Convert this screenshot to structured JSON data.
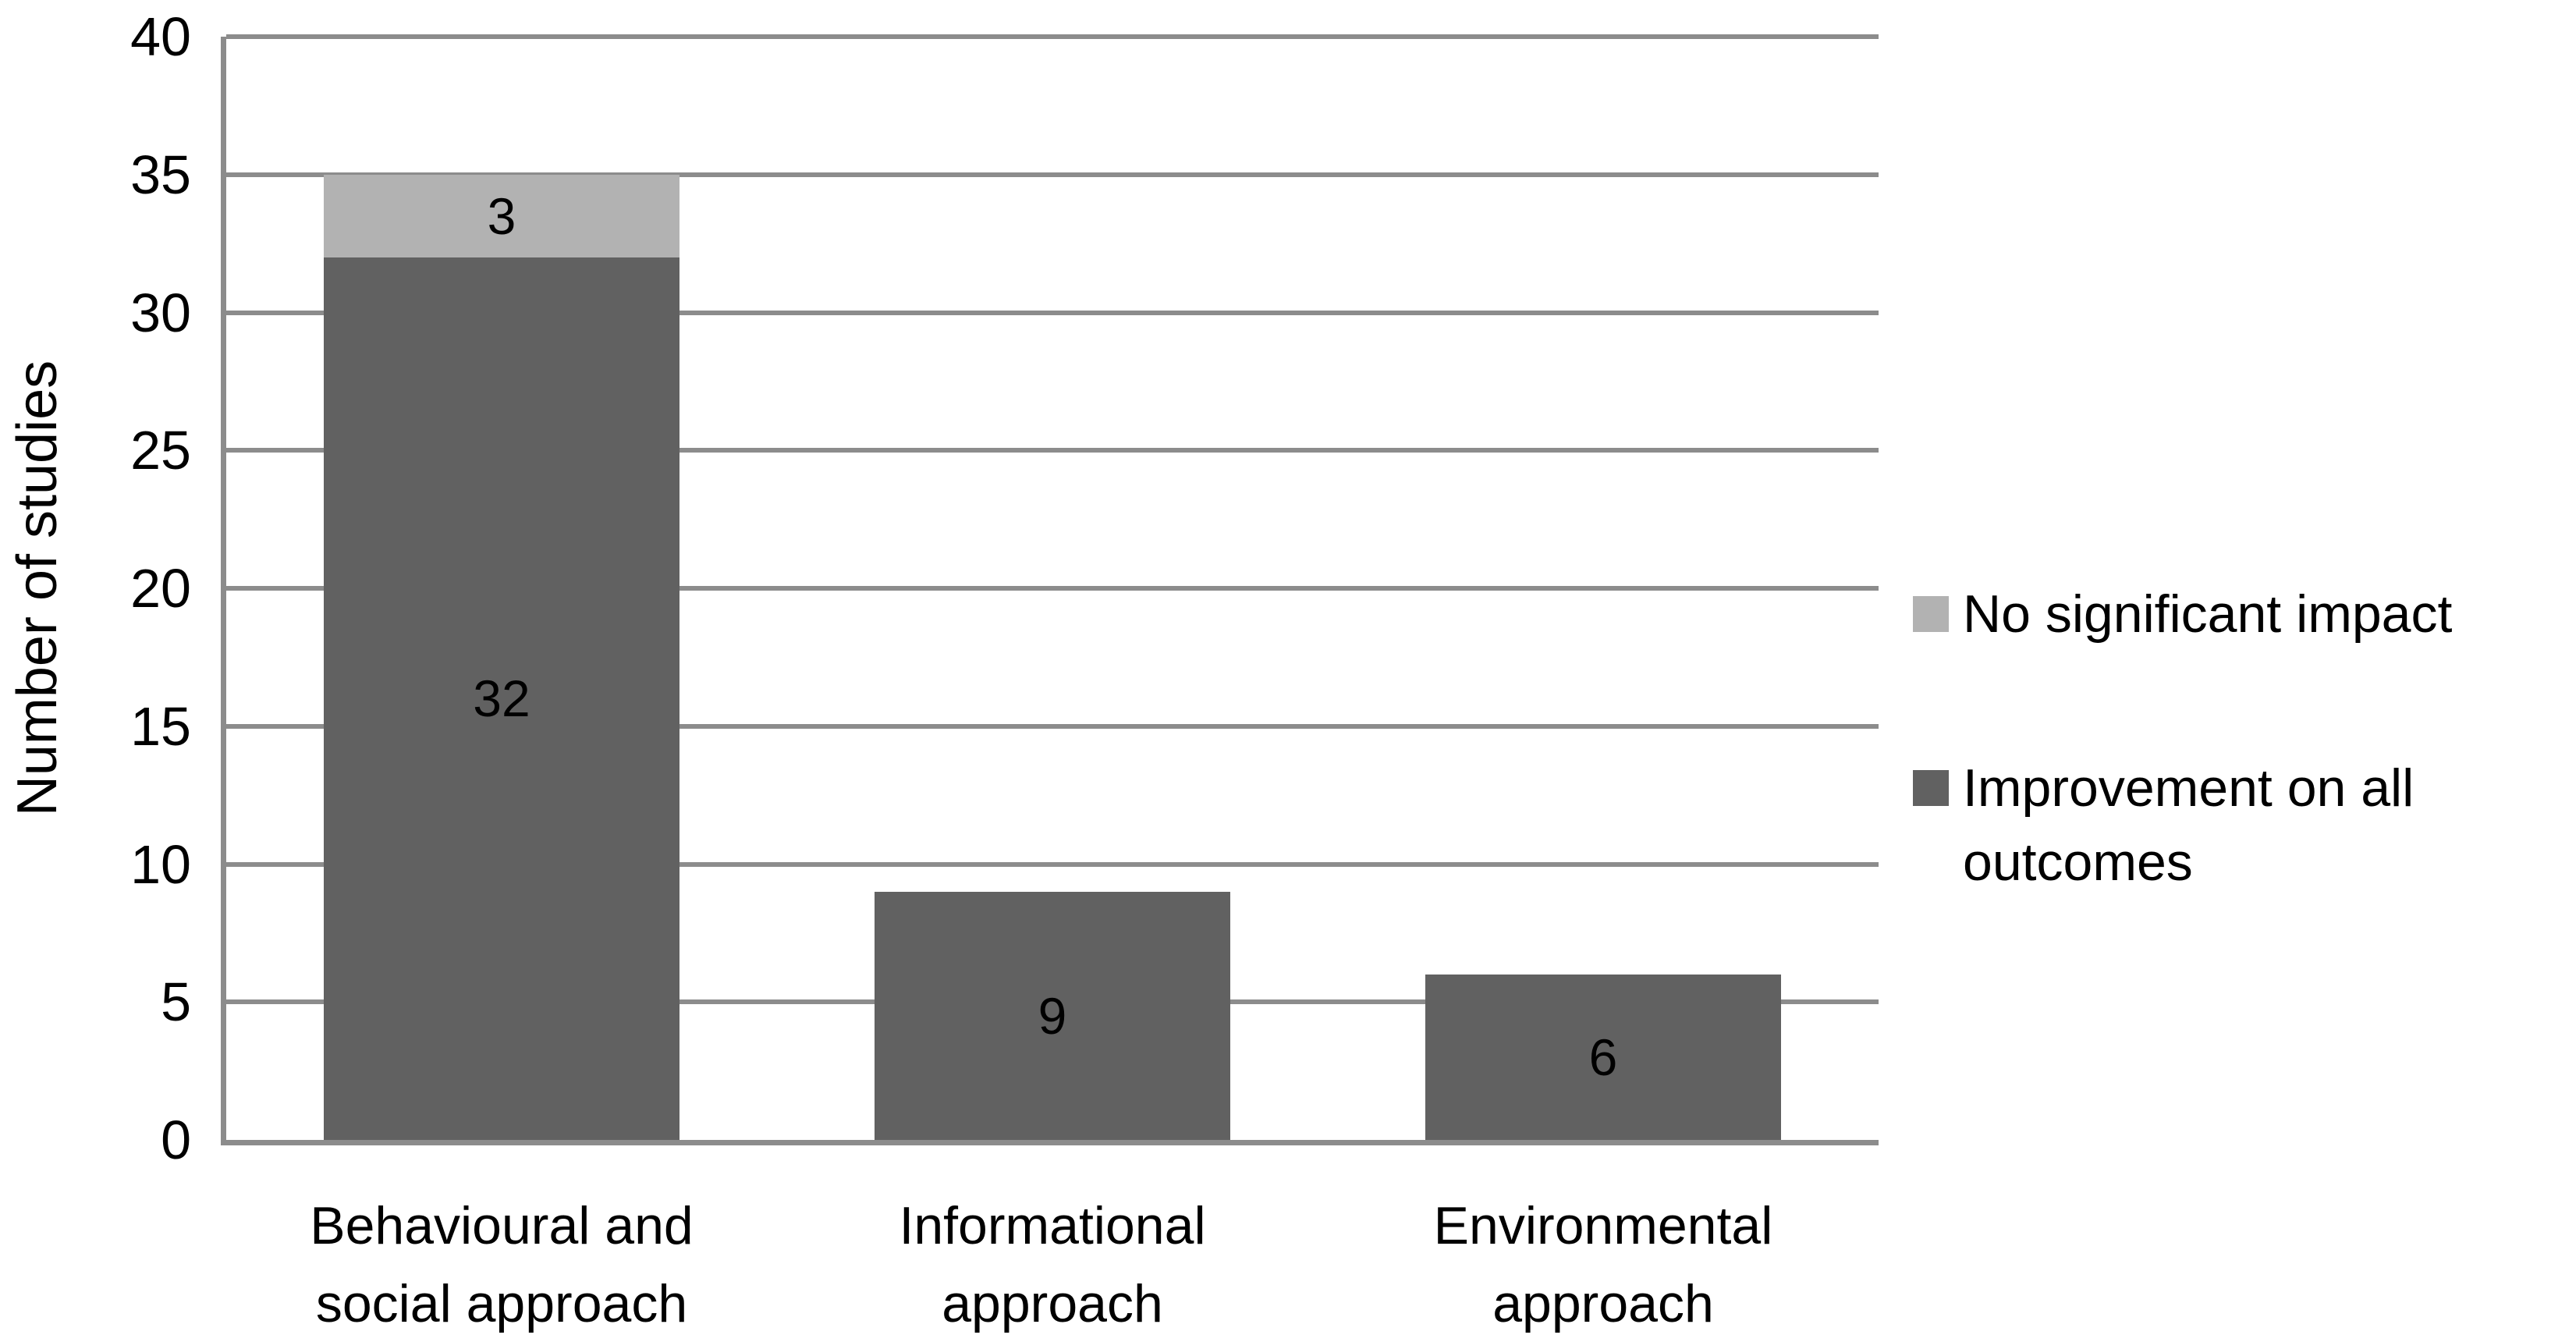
{
  "chart_data": {
    "type": "bar",
    "stacked": true,
    "title": "",
    "categories": [
      "Behavioural and social approach",
      "Informational approach",
      "Environmental approach"
    ],
    "series": [
      {
        "name": "Improvement on all outcomes",
        "color": "#616161",
        "values": [
          32,
          9,
          6
        ]
      },
      {
        "name": "No significant impact",
        "color": "#b2b2b2",
        "values": [
          3,
          0,
          0
        ]
      }
    ],
    "totals": [
      35,
      9,
      6
    ],
    "xlabel": "",
    "ylabel": "Number of studies",
    "ylim": [
      0,
      40
    ],
    "yticks": [
      0,
      5,
      10,
      15,
      20,
      25,
      30,
      35,
      40
    ],
    "grid": "horizontal",
    "gridline_color": "#8c8c8c",
    "axis_color": "#8c8c8c",
    "data_labels": {
      "show": true,
      "color": "#000000",
      "position": "segment-center"
    },
    "legend_position": "right"
  },
  "legend": {
    "items": [
      {
        "label": "No significant impact",
        "color": "#b2b2b2"
      },
      {
        "label": "Improvement on all outcomes",
        "color": "#616161"
      }
    ]
  }
}
